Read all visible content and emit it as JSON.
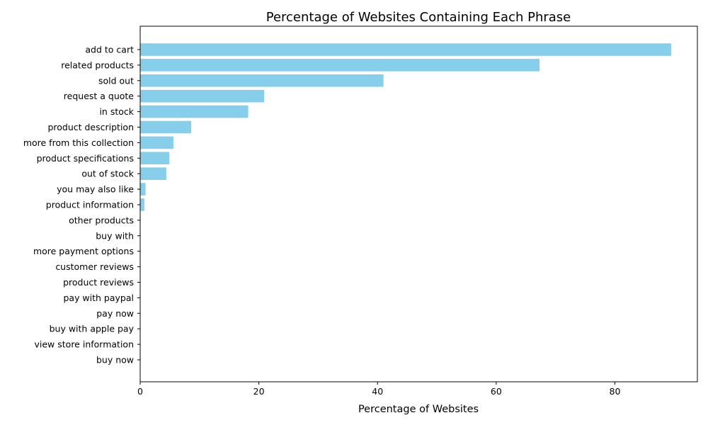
{
  "chart_data": {
    "type": "bar",
    "orientation": "horizontal",
    "title": "Percentage of Websites Containing Each Phrase",
    "xlabel": "Percentage of Websites",
    "ylabel": "",
    "xlim": [
      0,
      93.9
    ],
    "x_ticks": [
      0,
      20,
      40,
      60,
      80
    ],
    "grid": false,
    "bar_color": "#87CEEB",
    "categories": [
      "add to cart",
      "related products",
      "sold out",
      "request a quote",
      "in stock",
      "product description",
      "more from this collection",
      "product specifications",
      "out of stock",
      "you may also like",
      "product information",
      "other products",
      "buy with",
      "more payment options",
      "customer reviews",
      "product reviews",
      "pay with paypal",
      "pay now",
      "buy with apple pay",
      "view store information",
      "buy now"
    ],
    "values": [
      89.5,
      67.3,
      41.0,
      20.9,
      18.2,
      8.6,
      5.6,
      4.9,
      4.4,
      0.9,
      0.7,
      0,
      0,
      0,
      0,
      0,
      0,
      0,
      0,
      0,
      0
    ]
  }
}
